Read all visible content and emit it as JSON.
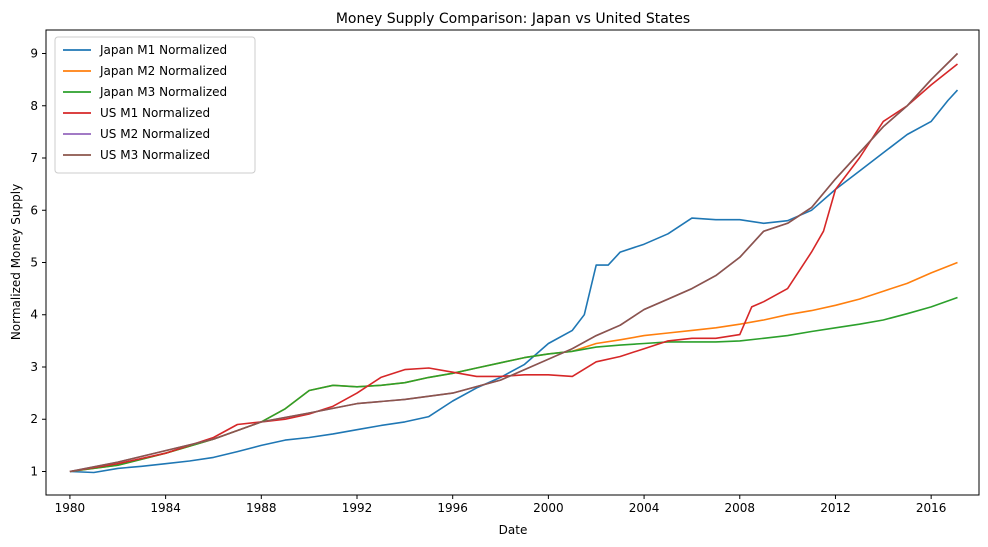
{
  "chart_data": {
    "type": "line",
    "title": "Money Supply Comparison: Japan vs United States",
    "xlabel": "Date",
    "ylabel": "Normalized Money Supply",
    "xlim": [
      1979.0,
      2018.0
    ],
    "ylim": [
      0.55,
      9.45
    ],
    "x_ticks": [
      1980,
      1984,
      1988,
      1992,
      1996,
      2000,
      2004,
      2008,
      2012,
      2016
    ],
    "y_ticks": [
      1,
      2,
      3,
      4,
      5,
      6,
      7,
      8,
      9
    ],
    "grid": false,
    "legend_position": "top-left",
    "series": [
      {
        "name": "Japan M1 Normalized",
        "color": "#1f77b4",
        "points": [
          [
            1980,
            1.0
          ],
          [
            1981,
            0.98
          ],
          [
            1982,
            1.06
          ],
          [
            1983,
            1.1
          ],
          [
            1984,
            1.15
          ],
          [
            1985,
            1.2
          ],
          [
            1986,
            1.27
          ],
          [
            1987,
            1.38
          ],
          [
            1988,
            1.5
          ],
          [
            1989,
            1.6
          ],
          [
            1990,
            1.65
          ],
          [
            1991,
            1.72
          ],
          [
            1992,
            1.8
          ],
          [
            1993,
            1.88
          ],
          [
            1994,
            1.95
          ],
          [
            1995,
            2.05
          ],
          [
            1996,
            2.35
          ],
          [
            1997,
            2.6
          ],
          [
            1998,
            2.8
          ],
          [
            1999,
            3.05
          ],
          [
            2000,
            3.45
          ],
          [
            2001,
            3.7
          ],
          [
            2001.5,
            4.0
          ],
          [
            2002,
            4.95
          ],
          [
            2002.5,
            4.95
          ],
          [
            2003,
            5.2
          ],
          [
            2004,
            5.35
          ],
          [
            2005,
            5.55
          ],
          [
            2006,
            5.85
          ],
          [
            2007,
            5.82
          ],
          [
            2008,
            5.82
          ],
          [
            2009,
            5.75
          ],
          [
            2010,
            5.8
          ],
          [
            2011,
            6.0
          ],
          [
            2012,
            6.4
          ],
          [
            2013,
            6.75
          ],
          [
            2014,
            7.1
          ],
          [
            2015,
            7.45
          ],
          [
            2016,
            7.7
          ],
          [
            2016.7,
            8.1
          ],
          [
            2017.1,
            8.3
          ]
        ]
      },
      {
        "name": "Japan M2 Normalized",
        "color": "#ff7f0e",
        "points": [
          [
            1980,
            1.0
          ],
          [
            1982,
            1.12
          ],
          [
            1984,
            1.35
          ],
          [
            1986,
            1.62
          ],
          [
            1988,
            1.95
          ],
          [
            1989,
            2.2
          ],
          [
            1990,
            2.55
          ],
          [
            1991,
            2.65
          ],
          [
            1992,
            2.62
          ],
          [
            1993,
            2.65
          ],
          [
            1994,
            2.7
          ],
          [
            1995,
            2.8
          ],
          [
            1996,
            2.88
          ],
          [
            1997,
            2.98
          ],
          [
            1998,
            3.08
          ],
          [
            1999,
            3.18
          ],
          [
            2000,
            3.25
          ],
          [
            2001,
            3.3
          ],
          [
            2002,
            3.45
          ],
          [
            2003,
            3.52
          ],
          [
            2004,
            3.6
          ],
          [
            2005,
            3.65
          ],
          [
            2006,
            3.7
          ],
          [
            2007,
            3.75
          ],
          [
            2008,
            3.82
          ],
          [
            2009,
            3.9
          ],
          [
            2010,
            4.0
          ],
          [
            2011,
            4.08
          ],
          [
            2012,
            4.18
          ],
          [
            2013,
            4.3
          ],
          [
            2014,
            4.45
          ],
          [
            2015,
            4.6
          ],
          [
            2016,
            4.8
          ],
          [
            2017.1,
            5.0
          ]
        ]
      },
      {
        "name": "Japan M3 Normalized",
        "color": "#2ca02c",
        "points": [
          [
            1980,
            1.0
          ],
          [
            1982,
            1.12
          ],
          [
            1984,
            1.35
          ],
          [
            1986,
            1.62
          ],
          [
            1988,
            1.95
          ],
          [
            1989,
            2.2
          ],
          [
            1990,
            2.55
          ],
          [
            1991,
            2.65
          ],
          [
            1992,
            2.62
          ],
          [
            1993,
            2.65
          ],
          [
            1994,
            2.7
          ],
          [
            1995,
            2.8
          ],
          [
            1996,
            2.88
          ],
          [
            1997,
            2.98
          ],
          [
            1998,
            3.08
          ],
          [
            1999,
            3.18
          ],
          [
            2000,
            3.25
          ],
          [
            2001,
            3.3
          ],
          [
            2002,
            3.38
          ],
          [
            2003,
            3.42
          ],
          [
            2004,
            3.45
          ],
          [
            2005,
            3.48
          ],
          [
            2006,
            3.48
          ],
          [
            2007,
            3.48
          ],
          [
            2008,
            3.5
          ],
          [
            2009,
            3.55
          ],
          [
            2010,
            3.6
          ],
          [
            2011,
            3.68
          ],
          [
            2012,
            3.75
          ],
          [
            2013,
            3.82
          ],
          [
            2014,
            3.9
          ],
          [
            2015,
            4.02
          ],
          [
            2016,
            4.15
          ],
          [
            2017.1,
            4.33
          ]
        ]
      },
      {
        "name": "US M1 Normalized",
        "color": "#d62728",
        "points": [
          [
            1980,
            1.0
          ],
          [
            1982,
            1.15
          ],
          [
            1984,
            1.35
          ],
          [
            1986,
            1.65
          ],
          [
            1987,
            1.9
          ],
          [
            1988,
            1.95
          ],
          [
            1989,
            2.0
          ],
          [
            1990,
            2.1
          ],
          [
            1991,
            2.25
          ],
          [
            1992,
            2.5
          ],
          [
            1993,
            2.8
          ],
          [
            1994,
            2.95
          ],
          [
            1995,
            2.98
          ],
          [
            1996,
            2.9
          ],
          [
            1997,
            2.82
          ],
          [
            1998,
            2.82
          ],
          [
            1999,
            2.85
          ],
          [
            2000,
            2.85
          ],
          [
            2001,
            2.82
          ],
          [
            2002,
            3.1
          ],
          [
            2003,
            3.2
          ],
          [
            2004,
            3.35
          ],
          [
            2005,
            3.5
          ],
          [
            2006,
            3.55
          ],
          [
            2007,
            3.55
          ],
          [
            2008,
            3.62
          ],
          [
            2008.5,
            4.15
          ],
          [
            2009,
            4.25
          ],
          [
            2010,
            4.5
          ],
          [
            2011,
            5.2
          ],
          [
            2011.5,
            5.6
          ],
          [
            2012,
            6.4
          ],
          [
            2013,
            7.0
          ],
          [
            2014,
            7.7
          ],
          [
            2015,
            8.0
          ],
          [
            2016,
            8.4
          ],
          [
            2017.1,
            8.8
          ]
        ]
      },
      {
        "name": "US M2 Normalized",
        "color": "#9467bd",
        "points": [
          [
            1980,
            1.0
          ],
          [
            1982,
            1.18
          ],
          [
            1984,
            1.4
          ],
          [
            1986,
            1.62
          ],
          [
            1988,
            1.95
          ],
          [
            1990,
            2.12
          ],
          [
            1992,
            2.3
          ],
          [
            1994,
            2.38
          ],
          [
            1996,
            2.5
          ],
          [
            1998,
            2.75
          ],
          [
            2000,
            3.15
          ],
          [
            2001,
            3.35
          ],
          [
            2002,
            3.6
          ],
          [
            2003,
            3.8
          ],
          [
            2004,
            4.1
          ],
          [
            2005,
            4.3
          ],
          [
            2006,
            4.5
          ],
          [
            2007,
            4.75
          ],
          [
            2008,
            5.1
          ],
          [
            2009,
            5.6
          ],
          [
            2010,
            5.75
          ],
          [
            2011,
            6.05
          ],
          [
            2012,
            6.6
          ],
          [
            2013,
            7.1
          ],
          [
            2014,
            7.6
          ],
          [
            2015,
            8.0
          ],
          [
            2016,
            8.5
          ],
          [
            2017.1,
            9.0
          ]
        ]
      },
      {
        "name": "US M3 Normalized",
        "color": "#8c564b",
        "points": [
          [
            1980,
            1.0
          ],
          [
            1982,
            1.18
          ],
          [
            1984,
            1.4
          ],
          [
            1986,
            1.62
          ],
          [
            1988,
            1.95
          ],
          [
            1990,
            2.12
          ],
          [
            1992,
            2.3
          ],
          [
            1994,
            2.38
          ],
          [
            1996,
            2.5
          ],
          [
            1998,
            2.75
          ],
          [
            2000,
            3.15
          ],
          [
            2001,
            3.35
          ],
          [
            2002,
            3.6
          ],
          [
            2003,
            3.8
          ],
          [
            2004,
            4.1
          ],
          [
            2005,
            4.3
          ],
          [
            2006,
            4.5
          ],
          [
            2007,
            4.75
          ],
          [
            2008,
            5.1
          ],
          [
            2009,
            5.6
          ],
          [
            2010,
            5.75
          ],
          [
            2011,
            6.05
          ],
          [
            2012,
            6.6
          ],
          [
            2013,
            7.1
          ],
          [
            2014,
            7.6
          ],
          [
            2015,
            8.0
          ],
          [
            2016,
            8.5
          ],
          [
            2017.1,
            9.0
          ]
        ]
      }
    ]
  }
}
